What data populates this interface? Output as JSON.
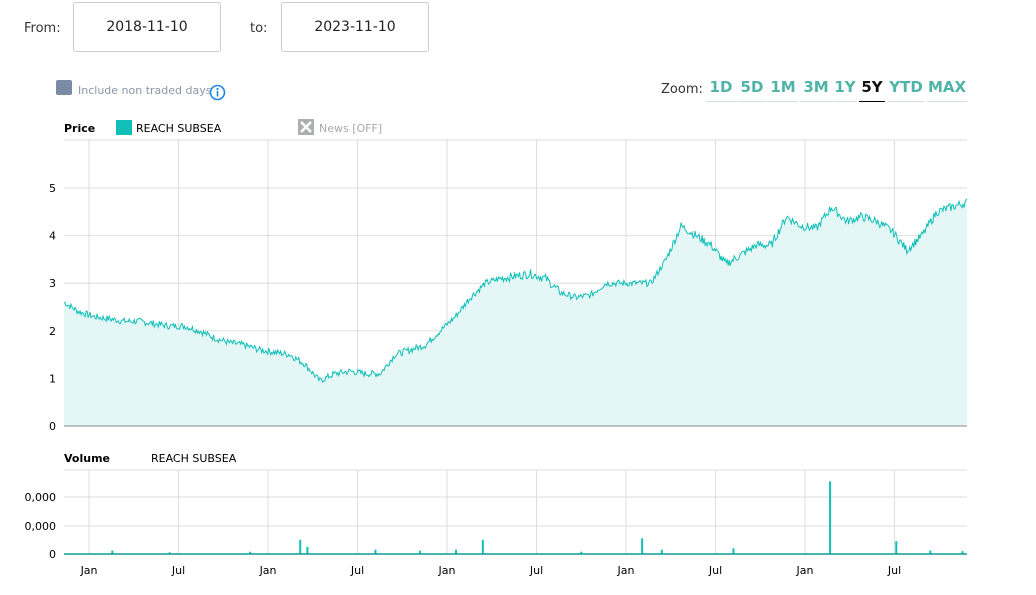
{
  "range": {
    "from_label": "From:",
    "from_value": "2018-11-10",
    "to_label": "to:",
    "to_value": "2023-11-10"
  },
  "options": {
    "non_traded_label": "Include non traded days"
  },
  "zoom": {
    "label": "Zoom:",
    "buttons": [
      "1D",
      "5D",
      "1M",
      "3M",
      "1Y",
      "5Y",
      "YTD",
      "MAX"
    ],
    "active": "5Y"
  },
  "colors": {
    "series": "#10bfb7",
    "fill": "#e4f7f6",
    "checkbox": "#7b8ba3",
    "zoom": "#4fb3a8"
  },
  "chart_data": [
    {
      "type": "area",
      "title": "Price",
      "legend": [
        "REACH SUBSEA"
      ],
      "news_label": "News [OFF]",
      "y_ticks": [
        "0",
        "1",
        "2",
        "3",
        "4",
        "5"
      ],
      "ylim": [
        0,
        6
      ],
      "x_ticks": [
        {
          "label": "Jan",
          "t": 2019.0
        },
        {
          "label": "Jul",
          "t": 2019.5
        },
        {
          "label": "Jan",
          "t": 2020.0
        },
        {
          "label": "Jul",
          "t": 2020.5
        },
        {
          "label": "Jan",
          "t": 2021.0
        },
        {
          "label": "Jul",
          "t": 2021.5
        },
        {
          "label": "Jan",
          "t": 2022.0
        },
        {
          "label": "Jul",
          "t": 2022.5
        },
        {
          "label": "Jan",
          "t": 2023.0
        },
        {
          "label": "Jul",
          "t": 2023.5
        }
      ],
      "xlim": [
        2018.86,
        2023.905
      ],
      "monthly": [
        2.6,
        2.4,
        2.3,
        2.25,
        2.2,
        2.2,
        2.15,
        2.1,
        2.1,
        2.0,
        1.85,
        1.75,
        1.7,
        1.6,
        1.55,
        1.5,
        1.3,
        0.95,
        1.1,
        1.15,
        1.1,
        1.1,
        1.5,
        1.6,
        1.7,
        2.0,
        2.3,
        2.7,
        3.0,
        3.1,
        3.15,
        3.2,
        3.1,
        2.8,
        2.7,
        2.75,
        3.0,
        3.0,
        3.0,
        3.0,
        3.5,
        4.2,
        4.0,
        3.8,
        3.4,
        3.6,
        3.8,
        3.8,
        4.4,
        4.2,
        4.15,
        4.6,
        4.3,
        4.4,
        4.3,
        4.1,
        3.7,
        4.0,
        4.5,
        4.6,
        4.7
      ]
    },
    {
      "type": "bar",
      "title": "Volume",
      "legend": [
        "REACH SUBSEA"
      ],
      "y_ticks": [
        "0",
        "0,000",
        "0,000"
      ],
      "spikes": [
        [
          2019.13,
          0.12
        ],
        [
          2019.45,
          0.06
        ],
        [
          2019.9,
          0.08
        ],
        [
          2020.18,
          0.5
        ],
        [
          2020.22,
          0.25
        ],
        [
          2020.6,
          0.15
        ],
        [
          2020.85,
          0.12
        ],
        [
          2021.2,
          0.5
        ],
        [
          2021.05,
          0.15
        ],
        [
          2021.75,
          0.08
        ],
        [
          2022.09,
          0.55
        ],
        [
          2022.2,
          0.15
        ],
        [
          2022.6,
          0.2
        ],
        [
          2023.14,
          2.55
        ],
        [
          2023.51,
          0.45
        ],
        [
          2023.7,
          0.12
        ],
        [
          2023.88,
          0.1
        ]
      ]
    }
  ]
}
